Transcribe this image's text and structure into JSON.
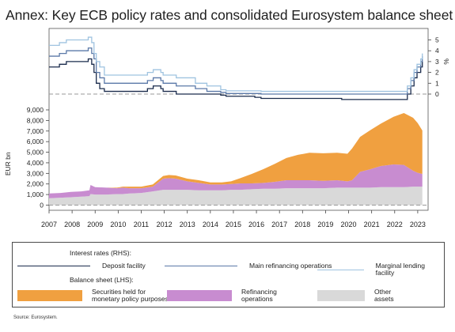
{
  "title": "Annex: Key ECB policy rates and consolidated Eurosystem balance sheet",
  "source": "Source: Eurosystem.",
  "colors": {
    "deposit": "#1a2b4c",
    "mro": "#5b79a8",
    "mlf": "#9fc3e0",
    "securities": "#f0a040",
    "refinancing": "#c88cd0",
    "other": "#d9d9d9",
    "zero_line": "#9a9a9a"
  },
  "legend": {
    "rates_header": "Interest rates (RHS):",
    "balance_header": "Balance sheet (LHS):",
    "deposit": "Deposit facility",
    "mro": "Main refinancing operations",
    "mlf": "Marginal lending facility",
    "securities": "Securities held for\nmonetary policy purposes",
    "refinancing": "Refinancing\noperations",
    "other": "Other\nassets"
  },
  "chart_data": [
    {
      "type": "line",
      "y_axis": "right",
      "yticks": [
        0,
        1,
        2,
        3,
        4,
        5
      ],
      "ylabel": "%",
      "ylim": [
        0,
        5.3
      ],
      "series": [
        {
          "name": "Deposit facility",
          "color_key": "deposit",
          "x": [
            2007.0,
            2007.45,
            2007.75,
            2008.7,
            2008.85,
            2008.95,
            2009.05,
            2009.2,
            2009.4,
            2011.27,
            2011.52,
            2011.85,
            2011.95,
            2012.52,
            2014.45,
            2014.68,
            2015.93,
            2016.2,
            2019.7,
            2022.55,
            2022.7,
            2022.84,
            2022.97,
            2023.13,
            2023.2
          ],
          "y": [
            2.5,
            2.75,
            3.0,
            3.25,
            2.75,
            2.0,
            1.0,
            0.5,
            0.25,
            0.5,
            0.75,
            0.5,
            0.25,
            0.0,
            -0.1,
            -0.2,
            -0.3,
            -0.4,
            -0.5,
            0.0,
            0.75,
            1.5,
            2.0,
            2.5,
            3.0
          ]
        },
        {
          "name": "Main refinancing operations",
          "color_key": "mro",
          "x": [
            2007.0,
            2007.45,
            2007.75,
            2008.7,
            2008.85,
            2008.95,
            2009.05,
            2009.2,
            2009.4,
            2011.27,
            2011.52,
            2011.85,
            2011.95,
            2012.52,
            2013.35,
            2013.85,
            2014.45,
            2014.68,
            2016.2,
            2022.55,
            2022.7,
            2022.84,
            2022.97,
            2023.13,
            2023.2
          ],
          "y": [
            3.5,
            3.75,
            4.0,
            4.25,
            3.75,
            3.25,
            2.0,
            1.5,
            1.0,
            1.25,
            1.5,
            1.25,
            1.0,
            0.75,
            0.5,
            0.25,
            0.15,
            0.05,
            0.0,
            0.5,
            1.25,
            2.0,
            2.5,
            3.0,
            3.5
          ]
        },
        {
          "name": "Marginal lending facility",
          "color_key": "mlf",
          "x": [
            2007.0,
            2007.45,
            2007.75,
            2008.7,
            2008.85,
            2008.95,
            2009.05,
            2009.2,
            2009.4,
            2011.27,
            2011.52,
            2011.85,
            2011.95,
            2012.52,
            2013.35,
            2013.85,
            2014.45,
            2014.68,
            2016.2,
            2022.55,
            2022.7,
            2022.84,
            2022.97,
            2023.13,
            2023.2
          ],
          "y": [
            4.5,
            4.75,
            5.0,
            5.25,
            4.75,
            3.75,
            3.0,
            2.5,
            1.75,
            2.0,
            2.25,
            2.0,
            1.75,
            1.5,
            1.0,
            0.75,
            0.4,
            0.3,
            0.25,
            0.75,
            1.5,
            2.25,
            2.75,
            3.25,
            3.75
          ]
        }
      ]
    },
    {
      "type": "area",
      "stacked": true,
      "y_axis": "left",
      "ylabel": "EUR bn",
      "ylim": [
        0,
        9000
      ],
      "yticks": [
        0,
        1000,
        2000,
        3000,
        4000,
        5000,
        6000,
        7000,
        8000,
        9000
      ],
      "yticklabels": [
        "0",
        "1,000",
        "2,000",
        "3,000",
        "4,000",
        "5,000",
        "6,000",
        "7,000",
        "8,000",
        "9,000"
      ],
      "xticklabels": [
        "2007",
        "2008",
        "2009",
        "2010",
        "2011",
        "2012",
        "2013",
        "2014",
        "2015",
        "2016",
        "2017",
        "2018",
        "2019",
        "2020",
        "2021",
        "2022",
        "2023"
      ],
      "x": [
        2007.0,
        2007.5,
        2007.95,
        2008.4,
        2008.75,
        2008.8,
        2009.0,
        2009.5,
        2009.95,
        2010.2,
        2010.5,
        2011.0,
        2011.5,
        2011.95,
        2012.2,
        2012.5,
        2013.0,
        2013.5,
        2014.0,
        2014.5,
        2014.9,
        2015.3,
        2015.8,
        2016.3,
        2016.8,
        2017.3,
        2017.8,
        2018.3,
        2018.9,
        2019.5,
        2019.95,
        2020.15,
        2020.5,
        2020.95,
        2021.4,
        2021.95,
        2022.4,
        2022.8,
        2023.0,
        2023.2
      ],
      "series": [
        {
          "name": "Other assets",
          "color_key": "other",
          "values": [
            650,
            700,
            750,
            800,
            850,
            1050,
            1000,
            1000,
            1050,
            1050,
            1100,
            1150,
            1300,
            1450,
            1450,
            1450,
            1450,
            1400,
            1400,
            1400,
            1450,
            1450,
            1500,
            1550,
            1550,
            1600,
            1600,
            1600,
            1600,
            1650,
            1650,
            1650,
            1650,
            1650,
            1700,
            1700,
            1700,
            1750,
            1750,
            1750
          ]
        },
        {
          "name": "Refinancing operations",
          "color_key": "refinancing",
          "values": [
            450,
            450,
            500,
            500,
            550,
            850,
            700,
            650,
            550,
            600,
            500,
            450,
            450,
            1050,
            1100,
            1050,
            800,
            700,
            550,
            550,
            550,
            600,
            550,
            550,
            650,
            750,
            750,
            750,
            700,
            700,
            600,
            700,
            1500,
            1750,
            2000,
            2150,
            2100,
            1500,
            1300,
            1200
          ]
        },
        {
          "name": "Securities held for monetary policy purposes",
          "color_key": "securities",
          "values": [
            0,
            0,
            0,
            0,
            0,
            0,
            0,
            0,
            50,
            100,
            150,
            150,
            200,
            250,
            300,
            300,
            250,
            250,
            200,
            200,
            250,
            500,
            900,
            1300,
            1700,
            2100,
            2400,
            2600,
            2600,
            2600,
            2600,
            3000,
            3300,
            3700,
            4000,
            4500,
            4900,
            5000,
            4700,
            4100
          ]
        }
      ]
    }
  ]
}
